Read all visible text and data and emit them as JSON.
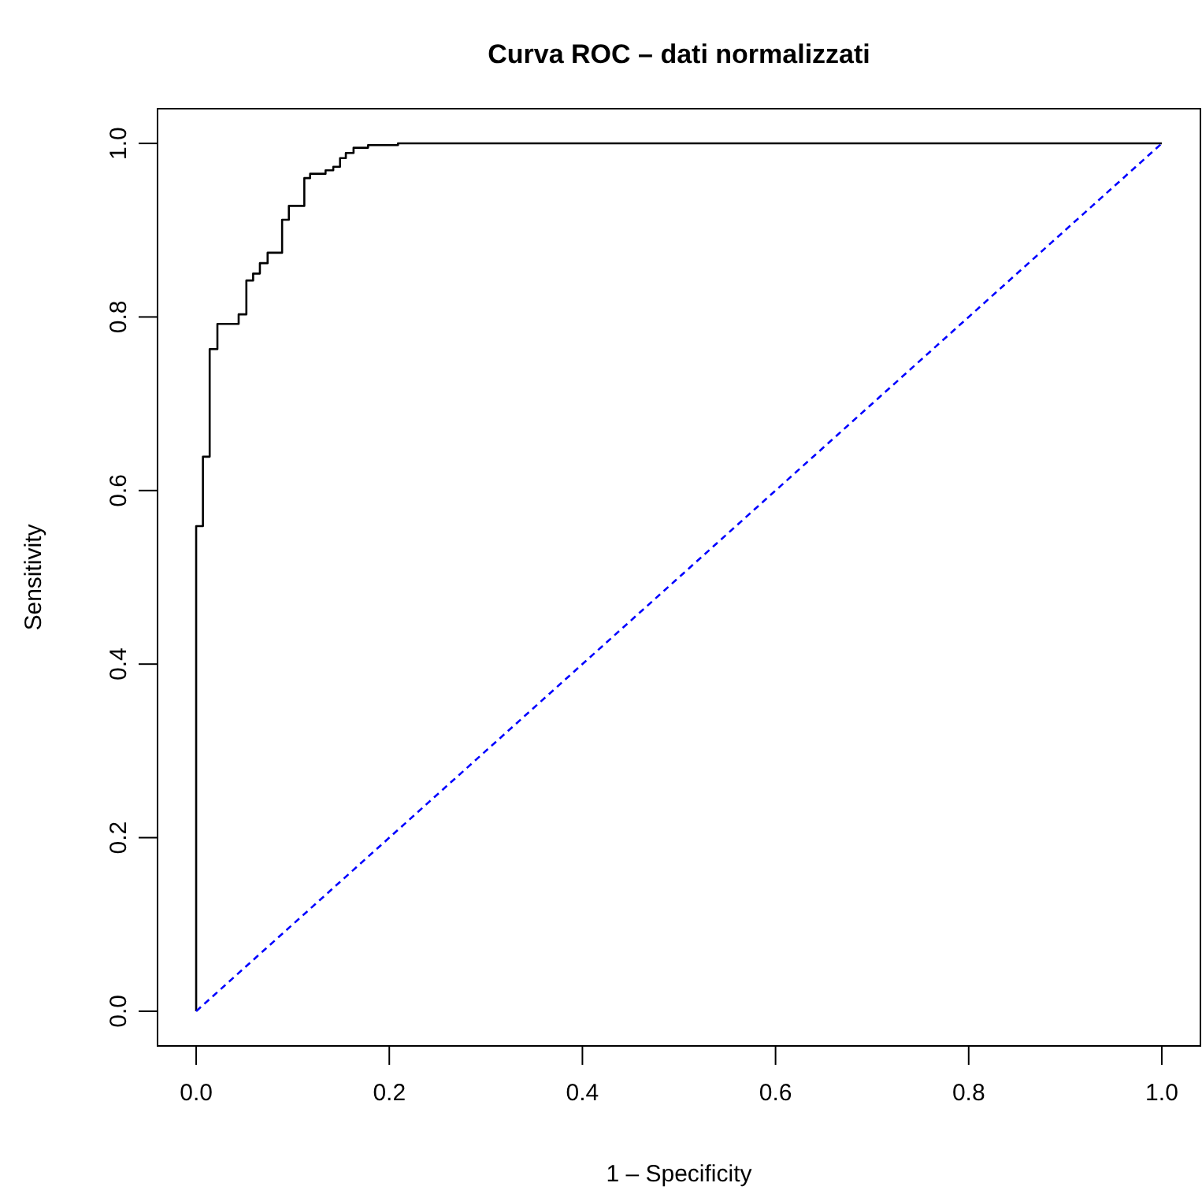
{
  "chart_data": {
    "type": "line",
    "title": "Curva ROC – dati normalizzati",
    "xlabel": "1 – Specificity",
    "ylabel": "Sensitivity",
    "xlim": [
      -0.04,
      1.04
    ],
    "ylim": [
      -0.04,
      1.04
    ],
    "xticks": [
      {
        "value": 0,
        "label": "0.0"
      },
      {
        "value": 0.2,
        "label": "0.2"
      },
      {
        "value": 0.4,
        "label": "0.4"
      },
      {
        "value": 0.6,
        "label": "0.6"
      },
      {
        "value": 0.8,
        "label": "0.8"
      },
      {
        "value": 1,
        "label": "1.0"
      }
    ],
    "yticks": [
      {
        "value": 0,
        "label": "0.0"
      },
      {
        "value": 0.2,
        "label": "0.2"
      },
      {
        "value": 0.4,
        "label": "0.4"
      },
      {
        "value": 0.6,
        "label": "0.6"
      },
      {
        "value": 0.8,
        "label": "0.8"
      },
      {
        "value": 1,
        "label": "1.0"
      }
    ],
    "grid": false,
    "marker": "none",
    "series": [
      {
        "type": "step",
        "color": "#000000",
        "line_style": "solid",
        "x": [
          0,
          0,
          0.007,
          0.014,
          0.022,
          0.044,
          0.052,
          0.059,
          0.066,
          0.074,
          0.089,
          0.096,
          0.112,
          0.118,
          0.134,
          0.142,
          0.149,
          0.155,
          0.163,
          0.178,
          0.209,
          1
        ],
        "values": [
          0,
          0.559,
          0.639,
          0.763,
          0.792,
          0.803,
          0.842,
          0.85,
          0.862,
          0.874,
          0.912,
          0.928,
          0.96,
          0.965,
          0.969,
          0.973,
          0.983,
          0.989,
          0.995,
          0.998,
          1,
          1
        ]
      },
      {
        "color": "#0000ff",
        "line_style": "dashed",
        "x": [
          0,
          1
        ],
        "values": [
          0,
          1
        ]
      }
    ]
  }
}
